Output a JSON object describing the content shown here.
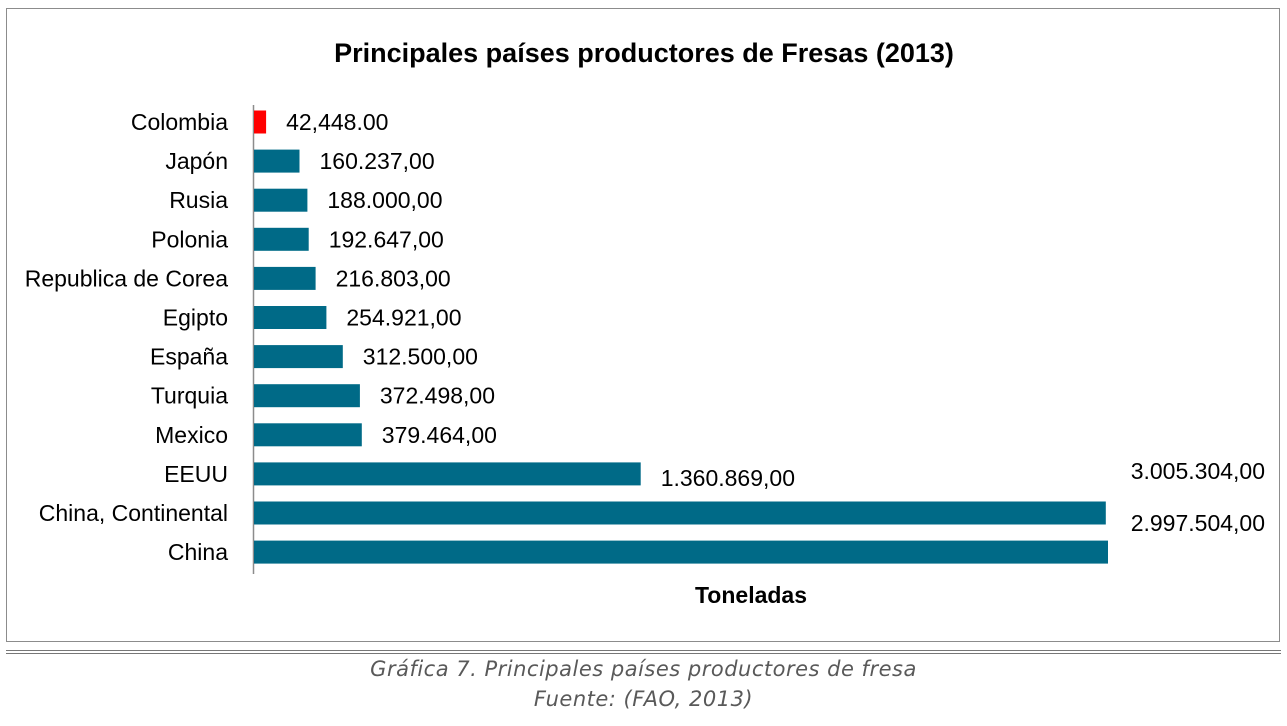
{
  "chart_data": {
    "type": "bar",
    "orientation": "horizontal",
    "title": "Principales países productores de Fresas (2013)",
    "xlabel": "Toneladas",
    "ylabel": "",
    "xlim": [
      0,
      3005304
    ],
    "grid": false,
    "legend": "none",
    "categories": [
      "Colombia",
      "Japón",
      "Rusia",
      "Polonia",
      "Republica de Corea",
      "Egipto",
      "España",
      "Turquia",
      "Mexico",
      "EEUU",
      "China, Continental",
      "China"
    ],
    "values": [
      42448,
      160237,
      188000,
      192647,
      216803,
      254921,
      312500,
      372498,
      379464,
      1360869,
      2997504,
      3005304
    ],
    "value_labels": [
      "42,448.00",
      "160.237,00",
      "188.000,00",
      "192.647,00",
      "216.803,00",
      "254.921,00",
      "312.500,00",
      "372.498,00",
      "379.464,00",
      "1.360.869,00",
      "2.997.504,00",
      "3.005.304,00"
    ],
    "colors": {
      "default": "#006a87",
      "highlight": "#ff0000",
      "highlight_category": "Colombia"
    }
  },
  "caption": {
    "title": "Gráfica 7. Principales países productores de fresa",
    "source": "Fuente: (FAO, 2013)"
  }
}
